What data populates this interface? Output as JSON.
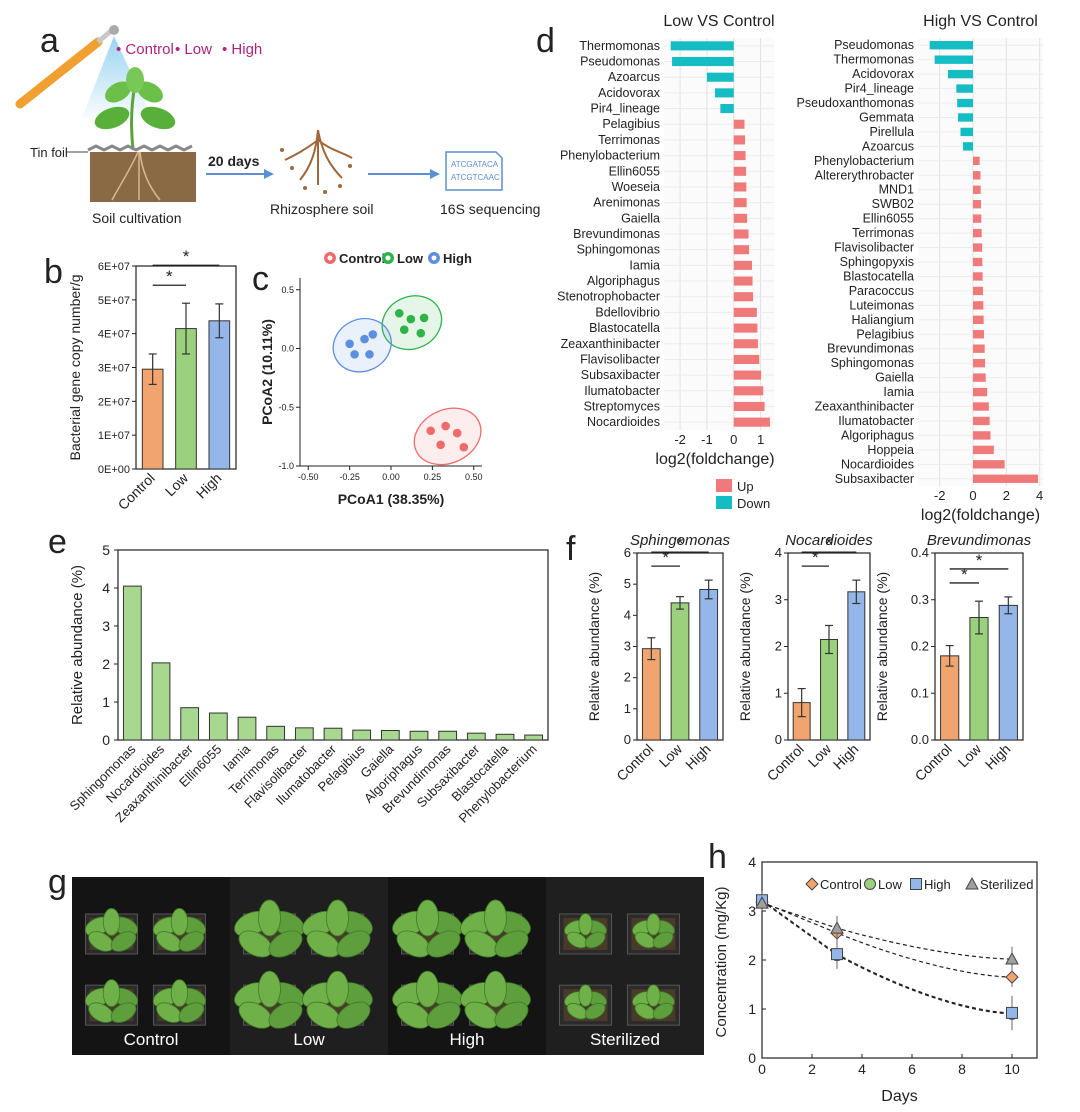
{
  "panel_letters": [
    "a",
    "b",
    "c",
    "d",
    "e",
    "f",
    "g",
    "h"
  ],
  "colors": {
    "control": "#f2a46f",
    "low": "#9bd07c",
    "high": "#94b6e8",
    "up": "#f07a7a",
    "down": "#14bcc4",
    "green_bar": "#a8d890",
    "pcoa_control": "#ef6b6b",
    "pcoa_low": "#2db34a",
    "pcoa_high": "#5d8ee0",
    "magenta": "#b0247a"
  },
  "panel_a": {
    "treatments": [
      "Control",
      "Low",
      "High"
    ],
    "label_tinfoil": "Tin foil",
    "label_soil": "Soil cultivation",
    "label_days": "20 days",
    "label_rhizo": "Rhizosphere soil",
    "label_seq": "16S sequencing",
    "seq_lines": [
      "ATCGATACA",
      "ATCGTCAAC"
    ]
  },
  "chart_data": [
    {
      "panel": "b",
      "type": "bar",
      "categories": [
        "Control",
        "Low",
        "High"
      ],
      "values": [
        29500000,
        41500000,
        43800000
      ],
      "errors": [
        4500000,
        7500000,
        5000000
      ],
      "ylabel": "Bacterial gene copy number/g",
      "ylim": [
        0,
        60000000
      ],
      "yticks": [
        "0E+00",
        "1E+07",
        "2E+07",
        "3E+07",
        "4E+07",
        "5E+07",
        "6E+07"
      ],
      "significance": [
        "*",
        "*"
      ]
    },
    {
      "panel": "c",
      "type": "scatter",
      "xlabel": "PCoA1 (38.35%)",
      "ylabel": "PCoA2 (10.11%)",
      "xlim": [
        -0.5,
        0.5
      ],
      "ylim": [
        -1.0,
        0.5
      ],
      "xticks": [
        "-0.50",
        "-0.25",
        "0.00",
        "0.25",
        "0.50"
      ],
      "yticks": [
        "-1.0",
        "-0.5",
        "0.0",
        "0.5"
      ],
      "legend": [
        "Control",
        "Low",
        "High"
      ],
      "series": [
        {
          "name": "Control",
          "points": [
            [
              0.24,
              -0.7
            ],
            [
              0.33,
              -0.66
            ],
            [
              0.4,
              -0.72
            ],
            [
              0.3,
              -0.82
            ],
            [
              0.44,
              -0.84
            ]
          ]
        },
        {
          "name": "Low",
          "points": [
            [
              0.05,
              0.3
            ],
            [
              0.12,
              0.25
            ],
            [
              0.2,
              0.26
            ],
            [
              0.08,
              0.16
            ],
            [
              0.18,
              0.13
            ]
          ]
        },
        {
          "name": "High",
          "points": [
            [
              -0.25,
              0.04
            ],
            [
              -0.16,
              0.08
            ],
            [
              -0.11,
              0.12
            ],
            [
              -0.22,
              -0.05
            ],
            [
              -0.13,
              -0.05
            ]
          ]
        }
      ]
    },
    {
      "panel": "d1",
      "type": "bar",
      "orientation": "horizontal",
      "title": "Low VS Control",
      "xlabel": "log2(foldchange)",
      "xlim": [
        -2.6,
        1.5
      ],
      "xticks": [
        -2,
        -1,
        0,
        1
      ],
      "categories": [
        "Thermomonas",
        "Pseudomonas",
        "Azoarcus",
        "Acidovorax",
        "Pir4_lineage",
        "Pelagibius",
        "Terrimonas",
        "Phenylobacterium",
        "Ellin6055",
        "Woeseia",
        "Arenimonas",
        "Gaiella",
        "Brevundimonas",
        "Sphingomonas",
        "Iamia",
        "Algoriphagus",
        "Stenotrophobacter",
        "Bdellovibrio",
        "Blastocatella",
        "Zeaxanthinibacter",
        "Flavisolibacter",
        "Subsaxibacter",
        "Ilumatobacter",
        "Streptomyces",
        "Nocardioides"
      ],
      "values": [
        -2.35,
        -2.3,
        -1.0,
        -0.7,
        -0.5,
        0.4,
        0.42,
        0.44,
        0.46,
        0.47,
        0.48,
        0.5,
        0.55,
        0.57,
        0.68,
        0.7,
        0.72,
        0.86,
        0.88,
        0.9,
        0.95,
        1.02,
        1.1,
        1.15,
        1.35
      ]
    },
    {
      "panel": "d2",
      "type": "bar",
      "orientation": "horizontal",
      "title": "High VS Control",
      "xlabel": "log2(foldchange)",
      "xlim": [
        -3.3,
        4.2
      ],
      "xticks": [
        -2,
        0,
        2,
        4
      ],
      "categories": [
        "Pseudomonas",
        "Thermomonas",
        "Acidovorax",
        "Pir4_lineage",
        "Pseudoxanthomonas",
        "Gemmata",
        "Pirellula",
        "Azoarcus",
        "Phenylobacterium",
        "Altererythrobacter",
        "MND1",
        "SWB02",
        "Ellin6055",
        "Terrimonas",
        "Flavisolibacter",
        "Sphingopyxis",
        "Blastocatella",
        "Paracoccus",
        "Luteimonas",
        "Haliangium",
        "Pelagibius",
        "Brevundimonas",
        "Sphingomonas",
        "Gaiella",
        "Iamia",
        "Zeaxanthinibacter",
        "Ilumatobacter",
        "Algoriphagus",
        "Hoppeia",
        "Nocardioides",
        "Subsaxibacter"
      ],
      "values": [
        -2.6,
        -2.3,
        -1.5,
        -1.0,
        -0.95,
        -0.9,
        -0.75,
        -0.6,
        0.4,
        0.45,
        0.46,
        0.48,
        0.5,
        0.52,
        0.55,
        0.56,
        0.58,
        0.6,
        0.62,
        0.64,
        0.66,
        0.7,
        0.72,
        0.76,
        0.85,
        0.95,
        1.0,
        1.05,
        1.25,
        1.9,
        3.9
      ]
    },
    {
      "panel": "e",
      "type": "bar",
      "ylabel": "Relative abundance (%)",
      "ylim": [
        0,
        5
      ],
      "yticks": [
        0,
        1,
        2,
        3,
        4,
        5
      ],
      "categories": [
        "Sphingomonas",
        "Nocardioides",
        "Zeaxanthinibacter",
        "Ellin6055",
        "Iamia",
        "Terrimonas",
        "Flavisolibacter",
        "Ilumatobacter",
        "Pelagibius",
        "Gaiella",
        "Algoriphagus",
        "Brevundimonas",
        "Subsaxibacter",
        "Blastocatella",
        "Phenylobacterium"
      ],
      "values": [
        4.05,
        2.03,
        0.85,
        0.71,
        0.6,
        0.36,
        0.32,
        0.31,
        0.26,
        0.25,
        0.23,
        0.23,
        0.18,
        0.15,
        0.13
      ]
    },
    {
      "panel": "f1",
      "type": "bar",
      "title": "Sphingomonas",
      "ylabel": "Relative abundance (%)",
      "ylim": [
        0,
        6
      ],
      "yticks": [
        "0",
        "1",
        "2",
        "3",
        "4",
        "5",
        "6"
      ],
      "categories": [
        "Control",
        "Low",
        "High"
      ],
      "values": [
        2.93,
        4.4,
        4.83
      ],
      "errors": [
        0.35,
        0.2,
        0.3
      ],
      "significance": [
        "*",
        "*"
      ]
    },
    {
      "panel": "f2",
      "type": "bar",
      "title": "Nocardioides",
      "ylabel": "Relative abundance (%)",
      "ylim": [
        0,
        4
      ],
      "yticks": [
        "0",
        "1",
        "2",
        "3",
        "4"
      ],
      "categories": [
        "Control",
        "Low",
        "High"
      ],
      "values": [
        0.8,
        2.15,
        3.17
      ],
      "errors": [
        0.3,
        0.3,
        0.25
      ],
      "significance": [
        "*",
        "*"
      ]
    },
    {
      "panel": "f3",
      "type": "bar",
      "title": "Brevundimonas",
      "ylabel": "Relative abundance (%)",
      "ylim": [
        0,
        0.4
      ],
      "yticks": [
        "0.0",
        "0.1",
        "0.2",
        "0.3",
        "0.4"
      ],
      "categories": [
        "Control",
        "Low",
        "High"
      ],
      "values": [
        0.18,
        0.262,
        0.288
      ],
      "errors": [
        0.022,
        0.035,
        0.018
      ],
      "significance": [
        "*",
        "*"
      ]
    },
    {
      "panel": "h",
      "type": "line",
      "xlabel": "Days",
      "ylabel": "Concentration (mg/Kg)",
      "xlim": [
        0,
        11
      ],
      "ylim": [
        0,
        4
      ],
      "xticks": [
        0,
        2,
        4,
        6,
        8,
        10
      ],
      "yticks": [
        0,
        1,
        2,
        3,
        4
      ],
      "legend": [
        "Control",
        "Low",
        "High",
        "Sterilized"
      ],
      "x": [
        0,
        3,
        10
      ],
      "series": [
        {
          "name": "Control",
          "values": [
            3.18,
            2.55,
            1.65
          ],
          "errors": [
            0.15,
            0.2,
            0.2
          ]
        },
        {
          "name": "Low",
          "values": [
            3.2,
            2.1,
            0.9
          ],
          "errors": [
            0.2,
            0.25,
            0.3
          ]
        },
        {
          "name": "High",
          "values": [
            3.22,
            2.12,
            0.92
          ],
          "errors": [
            0.15,
            0.3,
            0.35
          ]
        },
        {
          "name": "Sterilized",
          "values": [
            3.16,
            2.65,
            2.02
          ],
          "errors": [
            0.1,
            0.25,
            0.25
          ]
        }
      ]
    }
  ],
  "panel_g": {
    "labels": [
      "Control",
      "Low",
      "High",
      "Sterilized"
    ]
  }
}
